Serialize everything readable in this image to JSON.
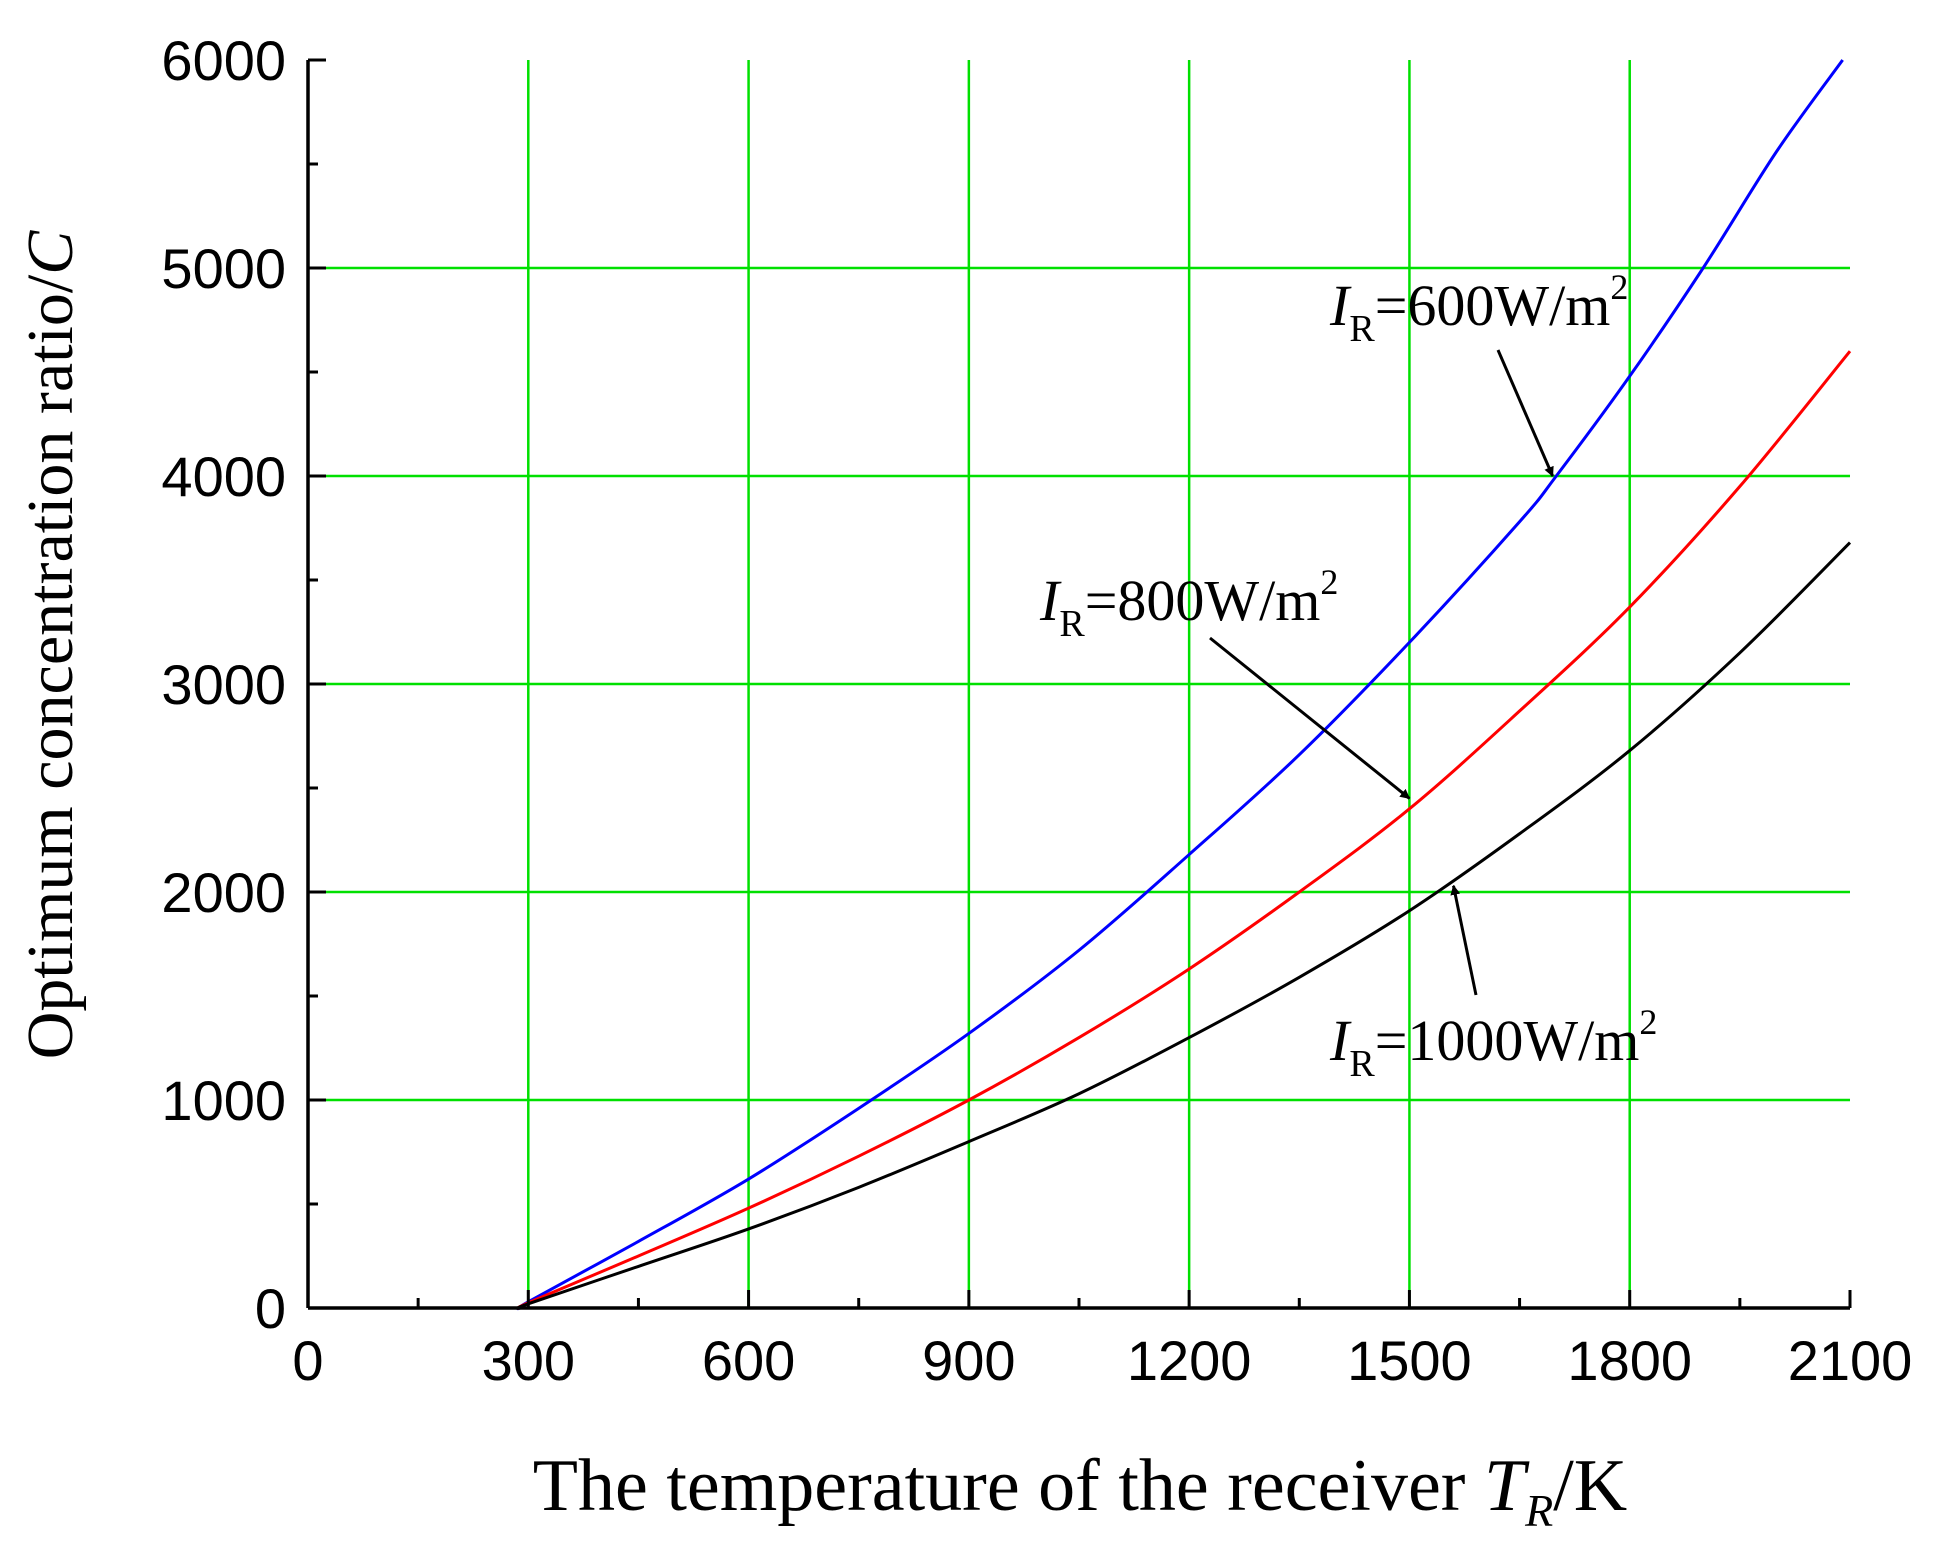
{
  "chart_data": {
    "type": "line",
    "title": "",
    "xlabel": {
      "prefix": "The temperature of the receiver ",
      "symbol": "T",
      "subscript": "R",
      "suffix": "/K"
    },
    "ylabel": {
      "prefix": "Optimum concentration ratio/",
      "symbol": "C"
    },
    "xlim": [
      0,
      2100
    ],
    "ylim": [
      0,
      6000
    ],
    "x_ticks": [
      "0",
      "300",
      "600",
      "900",
      "1200",
      "1500",
      "1800",
      "2100"
    ],
    "y_ticks": [
      "0",
      "1000",
      "2000",
      "3000",
      "4000",
      "5000",
      "6000"
    ],
    "grid": true,
    "grid_color": "#00e000",
    "series": [
      {
        "name": "I_R=600W/m2",
        "color": "#0000ff",
        "x": [
          290,
          300,
          450,
          600,
          750,
          900,
          1050,
          1200,
          1350,
          1500,
          1650,
          1700,
          1800,
          1900,
          2000,
          2090
        ],
        "y": [
          0,
          30,
          320,
          620,
          960,
          1320,
          1720,
          2180,
          2660,
          3200,
          3780,
          4000,
          4480,
          5000,
          5560,
          6000
        ]
      },
      {
        "name": "I_R=800W/m2",
        "color": "#ff0000",
        "x": [
          290,
          300,
          450,
          600,
          750,
          900,
          1050,
          1200,
          1350,
          1500,
          1650,
          1800,
          1950,
          2100
        ],
        "y": [
          0,
          25,
          250,
          480,
          730,
          1000,
          1300,
          1630,
          2000,
          2400,
          2870,
          3370,
          3950,
          4600
        ]
      },
      {
        "name": "I_R=1000W/m2",
        "color": "#000000",
        "x": [
          290,
          300,
          450,
          600,
          750,
          900,
          1050,
          1200,
          1350,
          1500,
          1650,
          1800,
          1950,
          2100
        ],
        "y": [
          0,
          20,
          200,
          380,
          580,
          800,
          1030,
          1300,
          1590,
          1910,
          2280,
          2680,
          3150,
          3680
        ]
      }
    ],
    "annotations": [
      {
        "symbol": "I",
        "subscript": "R",
        "text": "=600W/m",
        "sup": "2",
        "arrow_to": [
          1695,
          4000
        ]
      },
      {
        "symbol": "I",
        "subscript": "R",
        "text": "=800W/m",
        "sup": "2",
        "arrow_to": [
          1500,
          2450
        ]
      },
      {
        "symbol": "I",
        "subscript": "R",
        "text": "=1000W/m",
        "sup": "2",
        "arrow_to": [
          1560,
          2030
        ]
      }
    ]
  }
}
